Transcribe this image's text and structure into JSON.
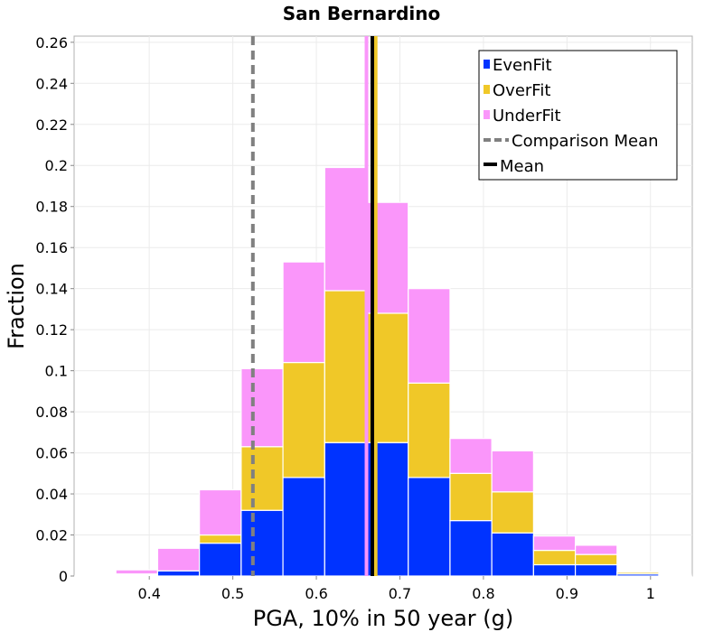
{
  "chart_data": {
    "type": "bar",
    "stacked": true,
    "title": "San Bernardino",
    "xlabel": "PGA, 10% in 50 year (g)",
    "ylabel": "Fraction",
    "xlim": [
      0.31,
      1.05
    ],
    "ylim": [
      0,
      0.263
    ],
    "x_ticks": [
      0.4,
      0.5,
      0.6,
      0.7,
      0.8,
      0.9,
      1.0
    ],
    "x_tick_labels": [
      "0.4",
      "0.5",
      "0.6",
      "0.7",
      "0.8",
      "0.9",
      "1"
    ],
    "y_ticks": [
      0,
      0.02,
      0.04,
      0.06,
      0.08,
      0.1,
      0.12,
      0.14,
      0.16,
      0.18,
      0.2,
      0.22,
      0.24,
      0.26
    ],
    "y_tick_labels": [
      "0",
      "0.02",
      "0.04",
      "0.06",
      "0.08",
      "0.1",
      "0.12",
      "0.14",
      "0.16",
      "0.18",
      "0.2",
      "0.22",
      "0.24",
      "0.26"
    ],
    "bin_centers": [
      0.335,
      0.385,
      0.435,
      0.485,
      0.535,
      0.585,
      0.635,
      0.685,
      0.735,
      0.785,
      0.835,
      0.885,
      0.935,
      0.985,
      1.035
    ],
    "bin_width": 0.05,
    "series": [
      {
        "name": "EvenFit",
        "color": "#0033ff",
        "values": [
          0.0,
          0.0005,
          0.0025,
          0.016,
          0.032,
          0.048,
          0.065,
          0.065,
          0.048,
          0.027,
          0.021,
          0.0055,
          0.0055,
          0.001,
          0.0005
        ]
      },
      {
        "name": "OverFit",
        "color": "#f0c828",
        "values": [
          0.0,
          0.0005,
          0.0,
          0.004,
          0.031,
          0.056,
          0.074,
          0.063,
          0.046,
          0.023,
          0.02,
          0.007,
          0.005,
          0.0008,
          0.0005
        ]
      },
      {
        "name": "UnderFit",
        "color": "#fa96fa",
        "values": [
          0.0005,
          0.002,
          0.011,
          0.022,
          0.038,
          0.049,
          0.06,
          0.054,
          0.046,
          0.017,
          0.02,
          0.007,
          0.0045,
          0.0002,
          0.0
        ]
      }
    ],
    "comparison_mean": {
      "name": "Comparison Mean",
      "x": 0.524,
      "color": "#808080",
      "style": "dashed"
    },
    "mean": {
      "name": "Mean",
      "x": 0.667,
      "color": "#000000",
      "style": "solid"
    },
    "mean_overlay_lines": [
      {
        "x": 0.66,
        "color": "#fa96fa"
      },
      {
        "x": 0.671,
        "color": "#f0c828"
      }
    ],
    "grid": true,
    "legend_position": "top-right"
  }
}
